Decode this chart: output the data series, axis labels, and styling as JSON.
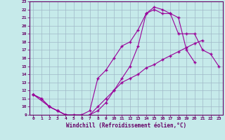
{
  "xlabel": "Windchill (Refroidissement éolien,°C)",
  "ylabel": "",
  "bg_color": "#c6eaea",
  "grid_color": "#a0b8c8",
  "line_color": "#990099",
  "xlim": [
    -0.5,
    23.5
  ],
  "ylim": [
    9,
    23
  ],
  "xticks": [
    0,
    1,
    2,
    3,
    4,
    5,
    6,
    7,
    8,
    9,
    10,
    11,
    12,
    13,
    14,
    15,
    16,
    17,
    18,
    19,
    20,
    21,
    22,
    23
  ],
  "yticks": [
    9,
    10,
    11,
    12,
    13,
    14,
    15,
    16,
    17,
    18,
    19,
    20,
    21,
    22,
    23
  ],
  "line1_x": [
    0,
    1,
    2,
    3,
    4,
    5,
    6,
    7,
    8,
    9,
    10,
    11,
    12,
    13,
    14,
    15,
    16,
    17,
    18,
    19,
    20,
    21
  ],
  "line1_y": [
    11.5,
    11.0,
    10.0,
    9.5,
    9.0,
    8.8,
    8.7,
    9.0,
    9.5,
    10.5,
    12.0,
    13.5,
    15.0,
    17.5,
    21.5,
    22.0,
    21.5,
    21.5,
    21.0,
    17.0,
    15.5,
    null
  ],
  "line2_x": [
    0,
    2,
    3,
    4,
    5,
    6,
    7,
    8,
    9,
    10,
    11,
    12,
    13,
    14,
    15,
    16,
    17,
    18,
    19,
    20,
    21,
    22,
    23
  ],
  "line2_y": [
    11.5,
    10.0,
    9.5,
    9.0,
    9.0,
    9.0,
    9.5,
    13.5,
    14.5,
    16.0,
    17.5,
    18.0,
    19.5,
    21.5,
    22.3,
    22.0,
    21.5,
    19.0,
    19.0,
    19.0,
    17.0,
    16.5,
    15.0
  ],
  "line3_x": [
    0,
    1,
    2,
    3,
    4,
    5,
    6,
    7,
    8,
    9,
    10,
    11,
    12,
    13,
    14,
    15,
    16,
    17,
    18,
    19,
    20,
    21,
    22,
    23
  ],
  "line3_y": [
    11.5,
    11.0,
    10.0,
    9.5,
    9.0,
    8.8,
    8.7,
    9.0,
    10.0,
    11.0,
    12.0,
    13.0,
    13.5,
    14.0,
    14.8,
    15.2,
    15.8,
    16.3,
    16.8,
    17.3,
    17.8,
    18.2,
    null,
    null
  ]
}
